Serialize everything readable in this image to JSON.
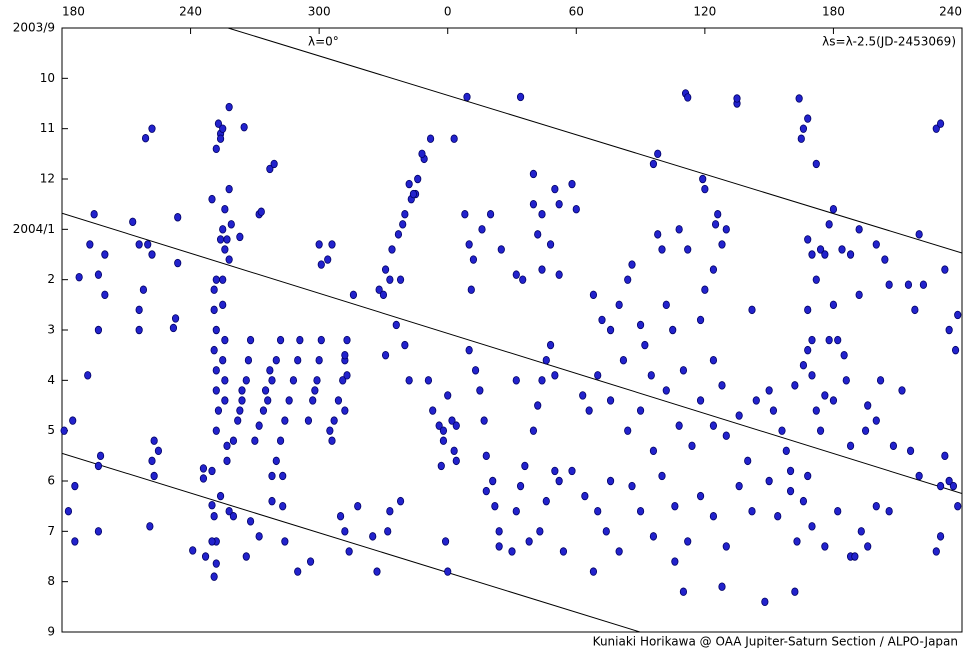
{
  "chart_data": {
    "type": "scatter",
    "annotations": [
      "λ=0°",
      "λs=λ-2.5(JD-2453069)"
    ],
    "credit": "Kuniaki Horikawa @ OAA Jupiter-Saturn Section / ALPO-Japan",
    "color": "#2222cc",
    "xlim": [
      180,
      600
    ],
    "xticks": [
      180,
      240,
      300,
      {
        "value": 360,
        "label": "0"
      },
      {
        "value": 420,
        "label": "60"
      },
      {
        "value": 480,
        "label": "120"
      },
      {
        "value": 540,
        "label": "180"
      },
      {
        "value": 600,
        "label": "240"
      }
    ],
    "ylim": [
      0,
      12
    ],
    "yticks": [
      {
        "value": 0,
        "label": "2003/9"
      },
      {
        "value": 1,
        "label": "10"
      },
      {
        "value": 2,
        "label": "11"
      },
      {
        "value": 3,
        "label": "12"
      },
      {
        "value": 4,
        "label": "2004/1"
      },
      {
        "value": 5,
        "label": "2"
      },
      {
        "value": 6,
        "label": "3"
      },
      {
        "value": 7,
        "label": "4"
      },
      {
        "value": 8,
        "label": "5"
      },
      {
        "value": 9,
        "label": "6"
      },
      {
        "value": 10,
        "label": "7"
      },
      {
        "value": 11,
        "label": "8"
      },
      {
        "value": 12,
        "label": "9"
      }
    ],
    "y_inverted": true,
    "lines": [
      {
        "x": [
          257.5,
          600
        ],
        "y": [
          0,
          4.47
        ]
      },
      {
        "x": [
          180,
          600
        ],
        "y": [
          3.68,
          9.25
        ]
      },
      {
        "x": [
          180,
          449.7
        ],
        "y": [
          8.45,
          12
        ]
      }
    ],
    "points": [
      [
        195,
        3.7
      ],
      [
        193,
        4.3
      ],
      [
        197,
        4.9
      ],
      [
        188,
        4.95
      ],
      [
        197,
        6.0
      ],
      [
        192,
        6.9
      ],
      [
        198,
        8.5
      ],
      [
        185,
        7.8
      ],
      [
        197,
        8.7
      ],
      [
        186,
        9.1
      ],
      [
        183,
        9.6
      ],
      [
        186,
        10.2
      ],
      [
        197,
        10.0
      ],
      [
        181,
        8.0
      ],
      [
        200,
        5.3
      ],
      [
        200,
        4.5
      ],
      [
        213,
        3.85
      ],
      [
        216,
        4.3
      ],
      [
        222,
        4.5
      ],
      [
        218,
        5.2
      ],
      [
        216,
        5.6
      ],
      [
        216,
        6.0
      ],
      [
        223,
        8.2
      ],
      [
        222,
        8.6
      ],
      [
        223,
        8.9
      ],
      [
        221,
        9.9
      ],
      [
        225,
        8.4
      ],
      [
        220,
        4.3
      ],
      [
        219,
        2.19
      ],
      [
        222,
        2.0
      ],
      [
        233,
        5.77
      ],
      [
        232,
        5.96
      ],
      [
        234,
        4.67
      ],
      [
        234,
        3.76
      ],
      [
        246,
        8.75
      ],
      [
        246,
        8.95
      ],
      [
        250,
        9.48
      ],
      [
        251,
        9.7
      ],
      [
        252,
        10.2
      ],
      [
        252,
        10.64
      ],
      [
        241,
        10.38
      ],
      [
        251,
        5.2
      ],
      [
        251,
        5.6
      ],
      [
        252,
        6.0
      ],
      [
        251,
        6.4
      ],
      [
        252,
        6.8
      ],
      [
        252,
        7.2
      ],
      [
        253,
        7.6
      ],
      [
        252,
        8.0
      ],
      [
        255,
        5.0
      ],
      [
        255,
        5.5
      ],
      [
        256,
        6.2
      ],
      [
        255,
        6.6
      ],
      [
        256,
        7.0
      ],
      [
        256,
        7.4
      ],
      [
        257,
        8.3
      ],
      [
        257,
        8.6
      ],
      [
        268,
        6.2
      ],
      [
        267,
        6.6
      ],
      [
        266,
        7.0
      ],
      [
        264,
        7.4
      ],
      [
        262,
        7.8
      ],
      [
        260,
        8.2
      ],
      [
        264,
        7.2
      ],
      [
        263,
        7.6
      ],
      [
        282,
        6.2
      ],
      [
        280,
        6.6
      ],
      [
        278,
        7.0
      ],
      [
        276,
        7.4
      ],
      [
        274,
        7.6
      ],
      [
        272,
        7.9
      ],
      [
        270,
        8.2
      ],
      [
        275,
        7.2
      ],
      [
        277,
        6.8
      ],
      [
        291,
        6.2
      ],
      [
        290,
        6.6
      ],
      [
        288,
        7.0
      ],
      [
        286,
        7.4
      ],
      [
        284,
        7.8
      ],
      [
        282,
        8.2
      ],
      [
        280,
        8.6
      ],
      [
        278,
        8.9
      ],
      [
        301,
        6.2
      ],
      [
        300,
        6.6
      ],
      [
        299,
        7.0
      ],
      [
        297,
        7.4
      ],
      [
        295,
        7.8
      ],
      [
        298,
        7.2
      ],
      [
        313,
        6.2
      ],
      [
        312,
        6.6
      ],
      [
        311,
        7.0
      ],
      [
        309,
        7.4
      ],
      [
        307,
        7.8
      ],
      [
        313,
        6.9
      ],
      [
        312,
        7.6
      ],
      [
        306,
        8.2
      ],
      [
        305,
        8.0
      ],
      [
        253,
        1.9
      ],
      [
        254,
        2.1
      ],
      [
        252,
        2.4
      ],
      [
        254,
        2.2
      ],
      [
        255,
        2.0
      ],
      [
        258,
        3.2
      ],
      [
        256,
        3.6
      ],
      [
        255,
        4.0
      ],
      [
        254,
        4.2
      ],
      [
        256,
        4.4
      ],
      [
        258,
        4.6
      ],
      [
        257,
        4.2
      ],
      [
        252,
        5.0
      ],
      [
        250,
        3.4
      ],
      [
        259,
        3.9
      ],
      [
        258,
        1.57
      ],
      [
        265,
        1.97
      ],
      [
        277,
        2.8
      ],
      [
        279,
        2.7
      ],
      [
        272,
        3.7
      ],
      [
        273,
        3.65
      ],
      [
        263,
        4.15
      ],
      [
        250,
        8.8
      ],
      [
        254,
        9.3
      ],
      [
        258,
        9.6
      ],
      [
        250,
        10.2
      ],
      [
        247,
        10.5
      ],
      [
        251,
        10.9
      ],
      [
        260,
        9.7
      ],
      [
        268,
        9.8
      ],
      [
        272,
        10.1
      ],
      [
        266,
        10.5
      ],
      [
        278,
        9.4
      ],
      [
        283,
        8.9
      ],
      [
        283,
        9.5
      ],
      [
        284,
        10.2
      ],
      [
        290,
        10.8
      ],
      [
        296,
        10.6
      ],
      [
        300,
        4.3
      ],
      [
        301,
        4.7
      ],
      [
        306,
        4.3
      ],
      [
        304,
        4.6
      ],
      [
        310,
        9.7
      ],
      [
        312,
        10.0
      ],
      [
        314,
        10.4
      ],
      [
        318,
        9.5
      ],
      [
        325,
        10.1
      ],
      [
        327,
        10.8
      ],
      [
        333,
        9.6
      ],
      [
        338,
        9.4
      ],
      [
        332,
        10.0
      ],
      [
        352,
        2.2
      ],
      [
        349,
        2.6
      ],
      [
        346,
        3.0
      ],
      [
        343,
        3.4
      ],
      [
        340,
        3.7
      ],
      [
        337,
        4.1
      ],
      [
        334,
        4.4
      ],
      [
        331,
        4.8
      ],
      [
        328,
        5.2
      ],
      [
        333,
        5.0
      ],
      [
        339,
        3.9
      ],
      [
        345,
        3.3
      ],
      [
        348,
        2.5
      ],
      [
        342,
        3.1
      ],
      [
        344,
        3.3
      ],
      [
        312,
        6.5
      ],
      [
        331,
        6.5
      ],
      [
        342,
        7.0
      ],
      [
        340,
        6.3
      ],
      [
        316,
        5.3
      ],
      [
        330,
        5.3
      ],
      [
        336,
        5.9
      ],
      [
        338,
        5.0
      ],
      [
        353,
        7.6
      ],
      [
        356,
        7.9
      ],
      [
        358,
        8.0
      ],
      [
        360,
        7.3
      ],
      [
        362,
        7.8
      ],
      [
        364,
        7.9
      ],
      [
        358,
        8.2
      ],
      [
        357,
        8.7
      ],
      [
        363,
        8.4
      ],
      [
        364,
        8.6
      ],
      [
        351,
        7.0
      ],
      [
        359,
        10.2
      ],
      [
        360,
        10.8
      ],
      [
        363,
        2.2
      ],
      [
        369,
        1.37
      ],
      [
        394,
        1.37
      ],
      [
        368,
        3.7
      ],
      [
        370,
        4.3
      ],
      [
        372,
        4.6
      ],
      [
        371,
        5.2
      ],
      [
        376,
        4.0
      ],
      [
        380,
        3.7
      ],
      [
        385,
        4.4
      ],
      [
        392,
        4.9
      ],
      [
        395,
        5.0
      ],
      [
        400,
        3.5
      ],
      [
        402,
        4.1
      ],
      [
        404,
        3.7
      ],
      [
        404,
        4.8
      ],
      [
        410,
        3.2
      ],
      [
        412,
        3.5
      ],
      [
        408,
        4.3
      ],
      [
        412,
        4.9
      ],
      [
        418,
        3.1
      ],
      [
        420,
        3.6
      ],
      [
        400,
        2.9
      ],
      [
        370,
        6.4
      ],
      [
        373,
        6.8
      ],
      [
        375,
        7.2
      ],
      [
        377,
        7.8
      ],
      [
        378,
        8.5
      ],
      [
        381,
        9.0
      ],
      [
        382,
        9.5
      ],
      [
        384,
        10.0
      ],
      [
        384,
        10.3
      ],
      [
        378,
        9.2
      ],
      [
        390,
        10.4
      ],
      [
        392,
        9.6
      ],
      [
        394,
        9.1
      ],
      [
        396,
        8.7
      ],
      [
        398,
        10.2
      ],
      [
        400,
        8.0
      ],
      [
        402,
        7.5
      ],
      [
        404,
        7.0
      ],
      [
        406,
        6.6
      ],
      [
        408,
        6.3
      ],
      [
        410,
        6.9
      ],
      [
        412,
        9.0
      ],
      [
        414,
        10.4
      ],
      [
        403,
        10.0
      ],
      [
        406,
        9.4
      ],
      [
        410,
        8.8
      ],
      [
        392,
        7.0
      ],
      [
        428,
        5.3
      ],
      [
        432,
        5.8
      ],
      [
        436,
        6.0
      ],
      [
        440,
        5.5
      ],
      [
        442,
        6.6
      ],
      [
        444,
        5.0
      ],
      [
        446,
        4.7
      ],
      [
        450,
        5.9
      ],
      [
        452,
        6.3
      ],
      [
        455,
        6.9
      ],
      [
        458,
        4.1
      ],
      [
        460,
        4.4
      ],
      [
        462,
        5.5
      ],
      [
        465,
        6.0
      ],
      [
        468,
        4.0
      ],
      [
        472,
        4.4
      ],
      [
        470,
        6.8
      ],
      [
        478,
        5.8
      ],
      [
        480,
        5.2
      ],
      [
        484,
        6.6
      ],
      [
        488,
        7.1
      ],
      [
        423,
        7.3
      ],
      [
        426,
        7.6
      ],
      [
        430,
        6.9
      ],
      [
        436,
        7.4
      ],
      [
        444,
        8.0
      ],
      [
        450,
        7.6
      ],
      [
        456,
        8.4
      ],
      [
        462,
        7.2
      ],
      [
        468,
        7.9
      ],
      [
        474,
        8.3
      ],
      [
        478,
        7.4
      ],
      [
        484,
        7.9
      ],
      [
        490,
        8.1
      ],
      [
        496,
        7.7
      ],
      [
        418,
        8.8
      ],
      [
        424,
        9.3
      ],
      [
        430,
        9.6
      ],
      [
        434,
        10.0
      ],
      [
        436,
        9.0
      ],
      [
        440,
        10.4
      ],
      [
        446,
        9.1
      ],
      [
        450,
        9.6
      ],
      [
        456,
        10.1
      ],
      [
        460,
        8.9
      ],
      [
        466,
        9.5
      ],
      [
        472,
        10.2
      ],
      [
        478,
        9.3
      ],
      [
        484,
        9.7
      ],
      [
        490,
        10.3
      ],
      [
        496,
        9.1
      ],
      [
        500,
        8.6
      ],
      [
        502,
        9.6
      ],
      [
        470,
        11.2
      ],
      [
        488,
        11.1
      ],
      [
        466,
        10.6
      ],
      [
        428,
        10.8
      ],
      [
        456,
        2.7
      ],
      [
        458,
        2.5
      ],
      [
        471,
        1.3
      ],
      [
        472,
        1.38
      ],
      [
        495,
        1.5
      ],
      [
        495,
        1.4
      ],
      [
        479,
        3.0
      ],
      [
        480,
        3.2
      ],
      [
        486,
        3.7
      ],
      [
        490,
        4.0
      ],
      [
        485,
        3.9
      ],
      [
        484,
        4.8
      ],
      [
        488,
        4.3
      ],
      [
        502,
        5.6
      ],
      [
        504,
        7.4
      ],
      [
        510,
        7.2
      ],
      [
        512,
        7.6
      ],
      [
        516,
        8.0
      ],
      [
        518,
        8.4
      ],
      [
        520,
        8.8
      ],
      [
        522,
        7.1
      ],
      [
        526,
        6.7
      ],
      [
        528,
        6.4
      ],
      [
        530,
        6.9
      ],
      [
        528,
        8.9
      ],
      [
        532,
        7.6
      ],
      [
        534,
        8.0
      ],
      [
        540,
        7.4
      ],
      [
        510,
        9.0
      ],
      [
        514,
        9.7
      ],
      [
        520,
        9.2
      ],
      [
        523,
        10.2
      ],
      [
        526,
        9.4
      ],
      [
        530,
        9.9
      ],
      [
        536,
        10.3
      ],
      [
        542,
        9.6
      ],
      [
        548,
        10.5
      ],
      [
        522,
        11.2
      ],
      [
        508,
        11.4
      ],
      [
        524,
        1.4
      ],
      [
        526,
        2.0
      ],
      [
        525,
        2.2
      ],
      [
        528,
        1.8
      ],
      [
        532,
        2.7
      ],
      [
        528,
        4.2
      ],
      [
        530,
        4.5
      ],
      [
        534,
        4.4
      ],
      [
        538,
        3.9
      ],
      [
        540,
        3.6
      ],
      [
        536,
        4.5
      ],
      [
        532,
        5.0
      ],
      [
        528,
        5.6
      ],
      [
        530,
        6.2
      ],
      [
        538,
        6.2
      ],
      [
        544,
        4.4
      ],
      [
        548,
        4.5
      ],
      [
        552,
        4.0
      ],
      [
        552,
        5.3
      ],
      [
        556,
        7.5
      ],
      [
        546,
        7.0
      ],
      [
        542,
        6.2
      ],
      [
        545,
        6.5
      ],
      [
        540,
        5.5
      ],
      [
        536,
        7.3
      ],
      [
        548,
        8.3
      ],
      [
        555,
        8.0
      ],
      [
        560,
        4.3
      ],
      [
        564,
        4.6
      ],
      [
        562,
        7.0
      ],
      [
        560,
        7.8
      ],
      [
        568,
        8.3
      ],
      [
        566,
        5.1
      ],
      [
        575,
        5.1
      ],
      [
        578,
        5.6
      ],
      [
        580,
        4.1
      ],
      [
        582,
        5.1
      ],
      [
        588,
        2.0
      ],
      [
        590,
        1.9
      ],
      [
        592,
        4.8
      ],
      [
        594,
        6.0
      ],
      [
        598,
        5.7
      ],
      [
        597,
        6.4
      ],
      [
        592,
        8.5
      ],
      [
        590,
        9.1
      ],
      [
        594,
        9.0
      ],
      [
        598,
        9.5
      ],
      [
        596,
        9.1
      ],
      [
        590,
        10.1
      ],
      [
        588,
        10.4
      ],
      [
        580,
        8.9
      ],
      [
        576,
        8.4
      ],
      [
        572,
        7.2
      ],
      [
        566,
        9.6
      ],
      [
        560,
        9.5
      ],
      [
        556,
        10.3
      ],
      [
        550,
        10.5
      ],
      [
        553,
        10.0
      ]
    ]
  }
}
